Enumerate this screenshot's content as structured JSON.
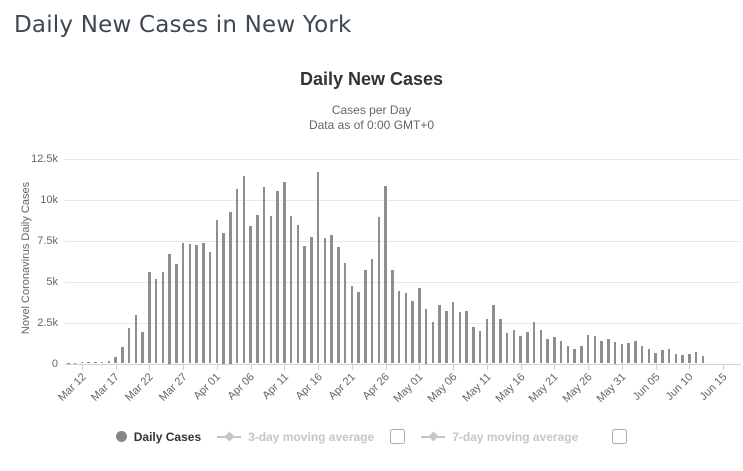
{
  "page": {
    "title": "Daily New Cases in New York"
  },
  "chart_data": {
    "type": "bar",
    "title": "Daily New Cases",
    "subtitle_lines": [
      "Cases per Day",
      "Data as of 0:00 GMT+0"
    ],
    "ylabel": "Novel Coronavirus Daily Cases",
    "xlabel": "",
    "ylim": [
      0,
      12500
    ],
    "grid": true,
    "legend_position": "bottom",
    "yticks": [
      {
        "value": 0,
        "label": "0"
      },
      {
        "value": 2500,
        "label": "2.5k"
      },
      {
        "value": 5000,
        "label": "5k"
      },
      {
        "value": 7500,
        "label": "7.5k"
      },
      {
        "value": 10000,
        "label": "10k"
      },
      {
        "value": 12500,
        "label": "12.5k"
      }
    ],
    "x_tick_labels": [
      "Mar 12",
      "Mar 17",
      "Mar 22",
      "Mar 27",
      "Apr 01",
      "Apr 06",
      "Apr 11",
      "Apr 16",
      "Apr 21",
      "Apr 26",
      "May 01",
      "May 06",
      "May 11",
      "May 16",
      "May 21",
      "May 26",
      "May 31",
      "Jun 05",
      "Jun 10",
      "Jun 15"
    ],
    "x_tick_interval_days": 5,
    "first_tick_slot": 2,
    "axis_total_slots": 100,
    "categories": [
      "Mar 10",
      "Mar 11",
      "Mar 12",
      "Mar 13",
      "Mar 14",
      "Mar 15",
      "Mar 16",
      "Mar 17",
      "Mar 18",
      "Mar 19",
      "Mar 20",
      "Mar 21",
      "Mar 22",
      "Mar 23",
      "Mar 24",
      "Mar 25",
      "Mar 26",
      "Mar 27",
      "Mar 28",
      "Mar 29",
      "Mar 30",
      "Mar 31",
      "Apr 01",
      "Apr 02",
      "Apr 03",
      "Apr 04",
      "Apr 05",
      "Apr 06",
      "Apr 07",
      "Apr 08",
      "Apr 09",
      "Apr 10",
      "Apr 11",
      "Apr 12",
      "Apr 13",
      "Apr 14",
      "Apr 15",
      "Apr 16",
      "Apr 17",
      "Apr 18",
      "Apr 19",
      "Apr 20",
      "Apr 21",
      "Apr 22",
      "Apr 23",
      "Apr 24",
      "Apr 25",
      "Apr 26",
      "Apr 27",
      "Apr 28",
      "Apr 29",
      "Apr 30",
      "May 01",
      "May 02",
      "May 03",
      "May 04",
      "May 05",
      "May 06",
      "May 07",
      "May 08",
      "May 09",
      "May 10",
      "May 11",
      "May 12",
      "May 13",
      "May 14",
      "May 15",
      "May 16",
      "May 17",
      "May 18",
      "May 19",
      "May 20",
      "May 21",
      "May 22",
      "May 23",
      "May 24",
      "May 25",
      "May 26",
      "May 27",
      "May 28",
      "May 29",
      "May 30",
      "May 31",
      "Jun 01",
      "Jun 02",
      "Jun 03",
      "Jun 04",
      "Jun 05",
      "Jun 06",
      "Jun 07",
      "Jun 08",
      "Jun 09",
      "Jun 10",
      "Jun 11",
      "Jun 12"
    ],
    "values": [
      25,
      40,
      110,
      90,
      120,
      65,
      150,
      400,
      1030,
      2150,
      2950,
      1900,
      5600,
      5150,
      5600,
      6700,
      6100,
      7400,
      7300,
      7250,
      7400,
      6800,
      8800,
      8000,
      9300,
      10650,
      11500,
      8400,
      9100,
      10800,
      9050,
      10550,
      11100,
      9000,
      8500,
      7200,
      7750,
      11700,
      7700,
      7850,
      7150,
      6150,
      4750,
      4400,
      5700,
      6400,
      8950,
      10850,
      5750,
      4450,
      4300,
      3850,
      4600,
      3350,
      2550,
      3550,
      3200,
      3750,
      3150,
      3200,
      2250,
      2000,
      2750,
      3600,
      2700,
      1850,
      2050,
      1700,
      1950,
      2550,
      2050,
      1500,
      1600,
      1350,
      1100,
      900,
      1050,
      1750,
      1700,
      1350,
      1500,
      1300,
      1200,
      1250,
      1400,
      1050,
      900,
      650,
      830,
      870,
      610,
      550,
      590,
      680,
      460
    ],
    "series_name": "Daily Cases",
    "bar_color": "#8e8e8e",
    "colors": {
      "bar": "#8e8e8e",
      "grid": "#e7e7e7",
      "axis_line": "#ccd2d9",
      "tick_text": "#666666",
      "chart_title_text": "#333333",
      "subtitle_text": "#666666",
      "page_title_text": "#3c4854",
      "legend_active_text": "#333333",
      "legend_disabled_text": "#c6c6c6",
      "legend_circle_marker": "#868686"
    },
    "legend": [
      {
        "label": "Daily Cases",
        "marker": "circle",
        "active": true,
        "checkbox": false
      },
      {
        "label": "3-day moving average",
        "marker": "line-diamond",
        "active": false,
        "checkbox": true,
        "checked": false
      },
      {
        "label": "7-day moving average",
        "marker": "line-diamond",
        "active": false,
        "checkbox": true,
        "checked": false
      }
    ]
  }
}
